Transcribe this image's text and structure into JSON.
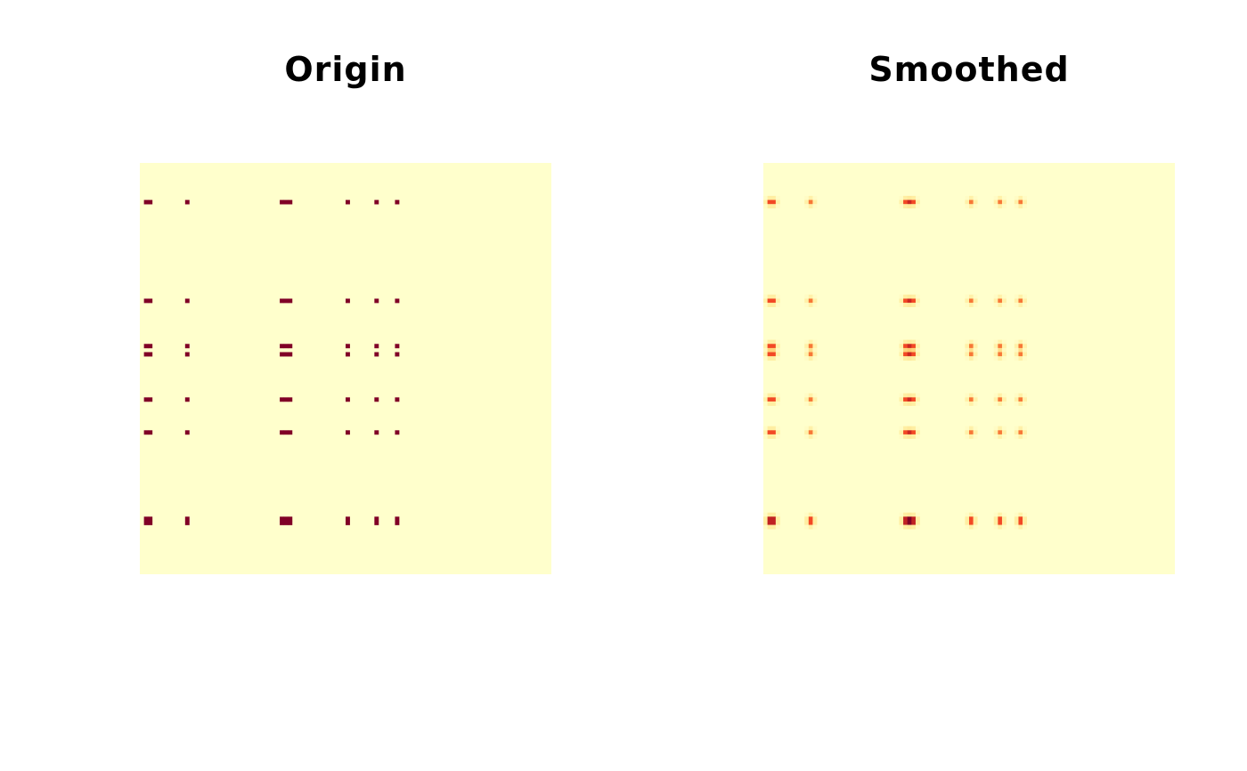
{
  "chart_data": [
    {
      "type": "heatmap",
      "title": "Origin",
      "grid_size": [
        100,
        100
      ],
      "colors": {
        "background": "#ffffcc",
        "low": "#ffeda0",
        "mid": "#feb24c",
        "high_mid": "#f03b20",
        "high": "#800026"
      },
      "grid": false,
      "axes": false,
      "legend": "none",
      "column_groups": [
        [
          1,
          2
        ],
        [
          11
        ],
        [
          34,
          35,
          36
        ],
        [
          50
        ],
        [
          57
        ],
        [
          62
        ]
      ],
      "row_groups": [
        [
          9
        ],
        [
          33
        ],
        [
          44,
          46
        ],
        [
          57
        ],
        [
          65
        ],
        [
          86,
          87
        ]
      ],
      "cell_value": 1
    },
    {
      "type": "heatmap",
      "title": "Smoothed",
      "grid_size": [
        100,
        100
      ],
      "colors": {
        "background": "#ffffcc",
        "low": "#ffeda0",
        "mid": "#feb24c",
        "high_mid": "#f03b20",
        "high": "#800026"
      },
      "grid": false,
      "axes": false,
      "legend": "none",
      "column_groups": [
        [
          1,
          2
        ],
        [
          11
        ],
        [
          34,
          35,
          36
        ],
        [
          50
        ],
        [
          57
        ],
        [
          62
        ]
      ],
      "row_groups": [
        [
          9
        ],
        [
          33
        ],
        [
          44,
          46
        ],
        [
          57
        ],
        [
          65
        ],
        [
          86,
          87
        ]
      ],
      "smoothing_kernel": [
        0.2,
        1,
        0.2
      ]
    }
  ]
}
